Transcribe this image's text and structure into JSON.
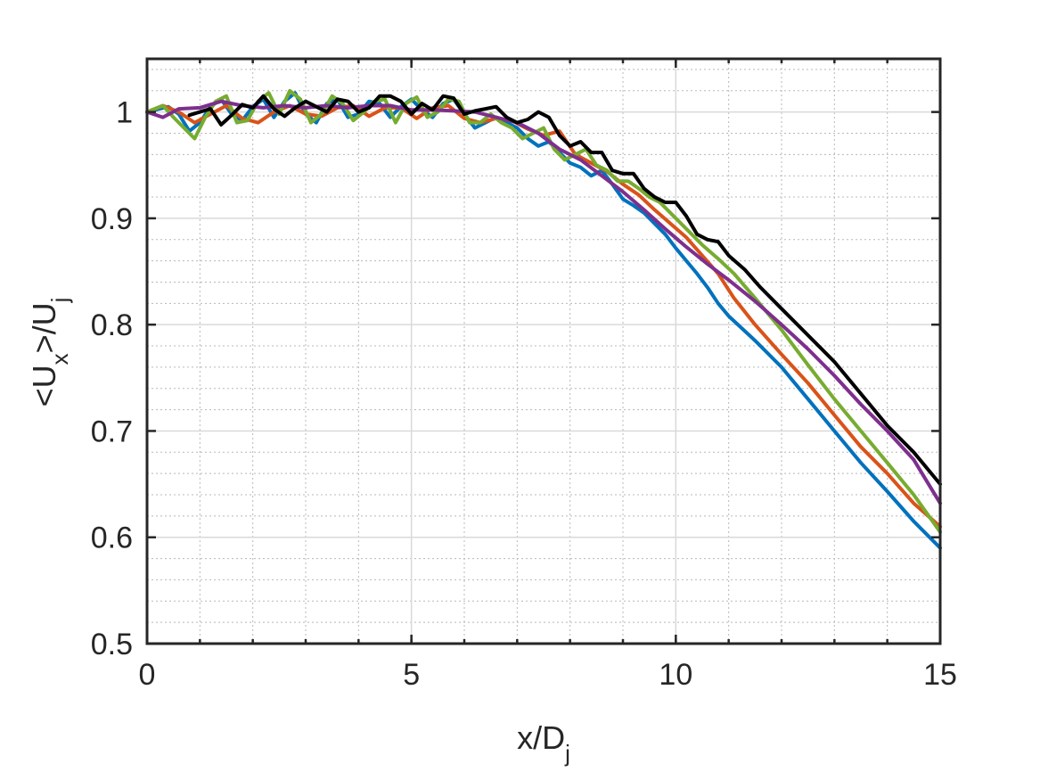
{
  "chart_data": {
    "type": "line",
    "title": "",
    "xlabel": "x/D",
    "xlabel_sub": "j",
    "ylabel_parts": [
      "<U",
      "x",
      ">/U",
      "j"
    ],
    "xlim": [
      0,
      15
    ],
    "ylim": [
      0.5,
      1.05
    ],
    "xticks": [
      0,
      5,
      10,
      15
    ],
    "xtick_labels": [
      "0",
      "5",
      "10",
      "15"
    ],
    "yticks": [
      0.5,
      0.6,
      0.7,
      0.8,
      0.9,
      1.0
    ],
    "ytick_labels": [
      "0.5",
      "0.6",
      "0.7",
      "0.8",
      "0.9",
      "1"
    ],
    "grid": "major and minor",
    "series": [
      {
        "color": "#0072BD",
        "x": [
          0,
          0.4,
          0.6,
          0.8,
          1.0,
          1.2,
          1.4,
          1.6,
          1.8,
          2.0,
          2.2,
          2.4,
          2.6,
          2.8,
          3.0,
          3.2,
          3.4,
          3.6,
          3.8,
          4.0,
          4.2,
          4.4,
          4.6,
          4.8,
          5.0,
          5.2,
          5.4,
          5.6,
          5.8,
          6.0,
          6.2,
          6.4,
          6.6,
          6.8,
          7.0,
          7.2,
          7.4,
          7.6,
          7.8,
          8.0,
          8.2,
          8.4,
          8.6,
          8.8,
          9.0,
          9.2,
          9.4,
          9.6,
          9.8,
          10.0,
          10.2,
          10.4,
          10.6,
          10.8,
          11.0,
          11.5,
          12.0,
          12.5,
          13.0,
          13.5,
          14.0,
          14.5,
          15.0
        ],
        "y": [
          1.0,
          1.005,
          0.998,
          0.982,
          0.99,
          1.005,
          1.012,
          0.998,
          0.992,
          1.005,
          1.012,
          0.995,
          1.01,
          1.018,
          0.998,
          0.99,
          1.008,
          1.012,
          0.995,
          0.998,
          1.01,
          1.008,
          0.995,
          1.005,
          1.012,
          1.002,
          0.995,
          1.008,
          1.012,
          0.998,
          0.985,
          0.99,
          0.995,
          0.99,
          0.985,
          0.975,
          0.968,
          0.972,
          0.962,
          0.952,
          0.948,
          0.94,
          0.945,
          0.932,
          0.918,
          0.912,
          0.905,
          0.895,
          0.885,
          0.872,
          0.86,
          0.848,
          0.835,
          0.82,
          0.808,
          0.785,
          0.76,
          0.73,
          0.7,
          0.67,
          0.643,
          0.615,
          0.59
        ]
      },
      {
        "color": "#D95319",
        "x": [
          0,
          0.3,
          0.6,
          0.9,
          1.2,
          1.5,
          1.8,
          2.1,
          2.4,
          2.7,
          3.0,
          3.3,
          3.6,
          3.9,
          4.2,
          4.5,
          4.8,
          5.1,
          5.4,
          5.7,
          6.0,
          6.3,
          6.6,
          6.9,
          7.2,
          7.5,
          7.8,
          8.1,
          8.4,
          8.7,
          9.0,
          9.3,
          9.6,
          9.9,
          10.2,
          10.5,
          10.8,
          11.1,
          11.5,
          12.0,
          12.5,
          13.0,
          13.5,
          14.0,
          14.5,
          15.0
        ],
        "y": [
          1.0,
          1.006,
          1.0,
          0.99,
          0.998,
          1.006,
          0.994,
          0.99,
          1.0,
          1.006,
          0.998,
          0.996,
          1.004,
          1.006,
          0.996,
          1.004,
          1.004,
          0.994,
          1.004,
          1.006,
          0.994,
          0.99,
          0.994,
          0.992,
          0.984,
          0.978,
          0.982,
          0.96,
          0.952,
          0.944,
          0.932,
          0.922,
          0.908,
          0.895,
          0.882,
          0.865,
          0.848,
          0.825,
          0.8,
          0.772,
          0.745,
          0.715,
          0.685,
          0.66,
          0.632,
          0.61
        ]
      },
      {
        "color": "#77AC30",
        "x": [
          0,
          0.3,
          0.5,
          0.7,
          0.9,
          1.1,
          1.3,
          1.5,
          1.7,
          1.9,
          2.1,
          2.3,
          2.5,
          2.7,
          2.9,
          3.1,
          3.3,
          3.5,
          3.7,
          3.9,
          4.1,
          4.3,
          4.5,
          4.7,
          4.9,
          5.1,
          5.3,
          5.5,
          5.7,
          5.9,
          6.1,
          6.3,
          6.5,
          6.7,
          6.9,
          7.1,
          7.3,
          7.5,
          7.7,
          7.9,
          8.1,
          8.3,
          8.5,
          8.7,
          8.9,
          9.1,
          9.3,
          9.5,
          9.7,
          9.9,
          10.2,
          10.5,
          10.8,
          11.1,
          11.5,
          12.0,
          12.5,
          13.0,
          13.5,
          14.0,
          14.5,
          15.0
        ],
        "y": [
          1.0,
          1.006,
          0.995,
          0.985,
          0.975,
          0.995,
          1.01,
          1.015,
          0.99,
          0.992,
          1.01,
          1.018,
          0.998,
          1.02,
          1.012,
          0.99,
          0.998,
          1.015,
          1.008,
          0.992,
          1.0,
          1.01,
          1.012,
          0.99,
          1.008,
          1.014,
          0.995,
          1.0,
          1.012,
          1.01,
          0.99,
          0.99,
          0.998,
          0.99,
          0.985,
          0.975,
          0.98,
          0.985,
          0.965,
          0.955,
          0.96,
          0.965,
          0.95,
          0.945,
          0.935,
          0.935,
          0.928,
          0.92,
          0.915,
          0.905,
          0.89,
          0.875,
          0.862,
          0.848,
          0.825,
          0.795,
          0.762,
          0.73,
          0.7,
          0.67,
          0.64,
          0.605
        ]
      },
      {
        "color": "#7E2F8E",
        "x": [
          0,
          0.3,
          0.6,
          1.0,
          1.4,
          1.8,
          2.2,
          2.6,
          3.0,
          3.4,
          3.8,
          4.2,
          4.6,
          5.0,
          5.4,
          5.8,
          6.2,
          6.6,
          7.0,
          7.4,
          7.8,
          8.2,
          8.6,
          9.0,
          9.4,
          9.8,
          10.2,
          10.6,
          11.0,
          11.5,
          12.0,
          12.5,
          13.0,
          13.5,
          14.0,
          14.5,
          15.0
        ],
        "y": [
          1.0,
          0.995,
          1.003,
          1.004,
          1.01,
          1.006,
          1.004,
          1.006,
          1.004,
          1.006,
          1.004,
          1.006,
          1.006,
          1.002,
          1.002,
          1.001,
          1.0,
          0.995,
          0.99,
          0.98,
          0.965,
          0.955,
          0.94,
          0.925,
          0.908,
          0.89,
          0.873,
          0.857,
          0.842,
          0.822,
          0.8,
          0.777,
          0.752,
          0.725,
          0.7,
          0.673,
          0.632
        ]
      },
      {
        "color": "#000000",
        "x": [
          0.8,
          1.0,
          1.2,
          1.4,
          1.6,
          1.8,
          2.0,
          2.2,
          2.4,
          2.6,
          2.8,
          3.0,
          3.2,
          3.4,
          3.6,
          3.8,
          4.0,
          4.2,
          4.4,
          4.6,
          4.8,
          5.0,
          5.2,
          5.4,
          5.6,
          5.8,
          6.0,
          6.2,
          6.4,
          6.6,
          6.8,
          7.0,
          7.2,
          7.4,
          7.6,
          7.8,
          8.0,
          8.2,
          8.4,
          8.6,
          8.8,
          9.0,
          9.2,
          9.4,
          9.6,
          9.8,
          10.0,
          10.2,
          10.4,
          10.6,
          10.8,
          11.0,
          11.3,
          11.6,
          12.0,
          12.5,
          13.0,
          13.5,
          14.0,
          14.5,
          15.0
        ],
        "y": [
          0.997,
          1.0,
          1.003,
          0.988,
          0.997,
          1.007,
          1.004,
          1.015,
          1.003,
          0.996,
          1.004,
          1.01,
          1.005,
          1.0,
          1.012,
          1.01,
          1.0,
          1.004,
          1.015,
          1.015,
          1.01,
          0.998,
          1.008,
          1.002,
          1.015,
          1.013,
          0.998,
          1.001,
          1.003,
          1.005,
          0.995,
          0.99,
          0.993,
          1.0,
          0.995,
          0.978,
          0.968,
          0.972,
          0.962,
          0.962,
          0.945,
          0.942,
          0.942,
          0.928,
          0.92,
          0.915,
          0.915,
          0.902,
          0.885,
          0.88,
          0.878,
          0.865,
          0.852,
          0.835,
          0.815,
          0.79,
          0.765,
          0.735,
          0.705,
          0.68,
          0.65
        ]
      }
    ]
  }
}
